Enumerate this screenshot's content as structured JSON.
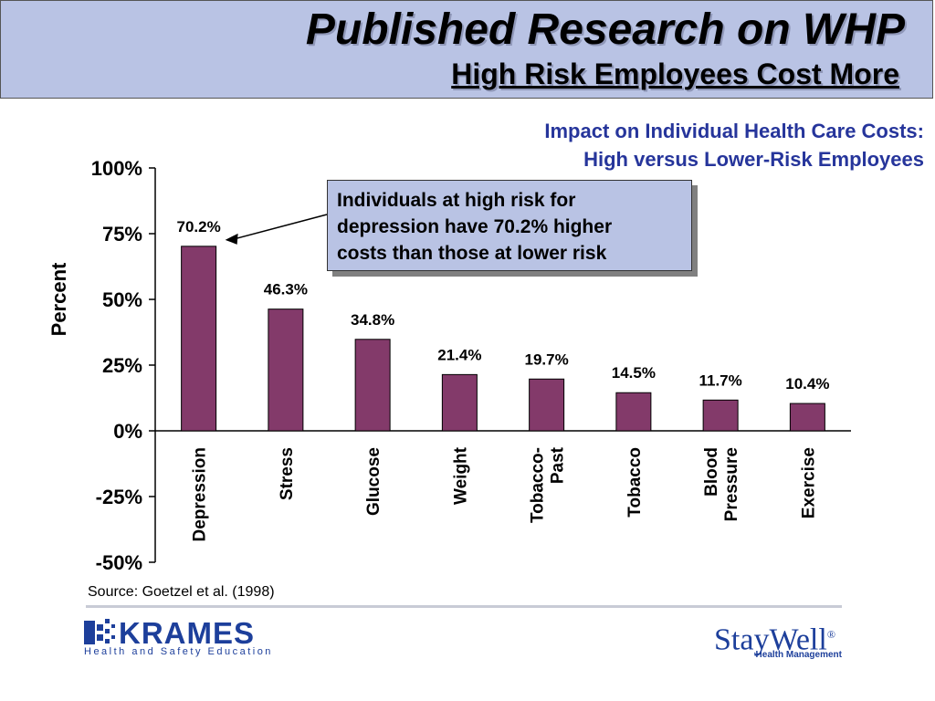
{
  "header": {
    "title": "Published Research on WHP",
    "subtitle": "High Risk Employees Cost More"
  },
  "chart_data": {
    "type": "bar",
    "title_lines": [
      "Impact on Individual Health Care Costs:",
      "High versus Lower-Risk Employees"
    ],
    "ylabel": "Percent",
    "xlabel": "",
    "categories": [
      [
        "Depression"
      ],
      [
        "Stress"
      ],
      [
        "Glucose"
      ],
      [
        "Weight"
      ],
      [
        "Tobacco-",
        "Past"
      ],
      [
        "Tobacco"
      ],
      [
        "Blood",
        "Pressure"
      ],
      [
        "Exercise"
      ]
    ],
    "values": [
      70.2,
      46.3,
      34.8,
      21.4,
      19.7,
      14.5,
      11.7,
      10.4
    ],
    "data_labels": [
      "70.2%",
      "46.3%",
      "34.8%",
      "21.4%",
      "19.7%",
      "14.5%",
      "11.7%",
      "10.4%"
    ],
    "ylim": [
      -50,
      100
    ],
    "yticks": [
      100,
      75,
      50,
      25,
      0,
      -25,
      -50
    ],
    "ytick_labels": [
      "100%",
      "75%",
      "50%",
      "25%",
      "0%",
      "-25%",
      "-50%"
    ],
    "grid": false,
    "bar_color": "#833a6a",
    "callout": {
      "text_lines": [
        "Individuals at high risk for",
        "depression have 70.2% higher",
        "costs than those at lower risk"
      ],
      "points_to": "Depression"
    }
  },
  "source": "Source: Goetzel et al. (1998)",
  "logos": {
    "left": {
      "name": "KRAMES",
      "tagline": "Health and Safety Education",
      "icon": "krames-logo-icon"
    },
    "right": {
      "name": "StayWell",
      "tagline": "Health Management",
      "mark": "®"
    }
  },
  "colors": {
    "header_bg": "#b9c3e4",
    "impact_text": "#26359b",
    "logo_blue": "#1d3f9b"
  }
}
